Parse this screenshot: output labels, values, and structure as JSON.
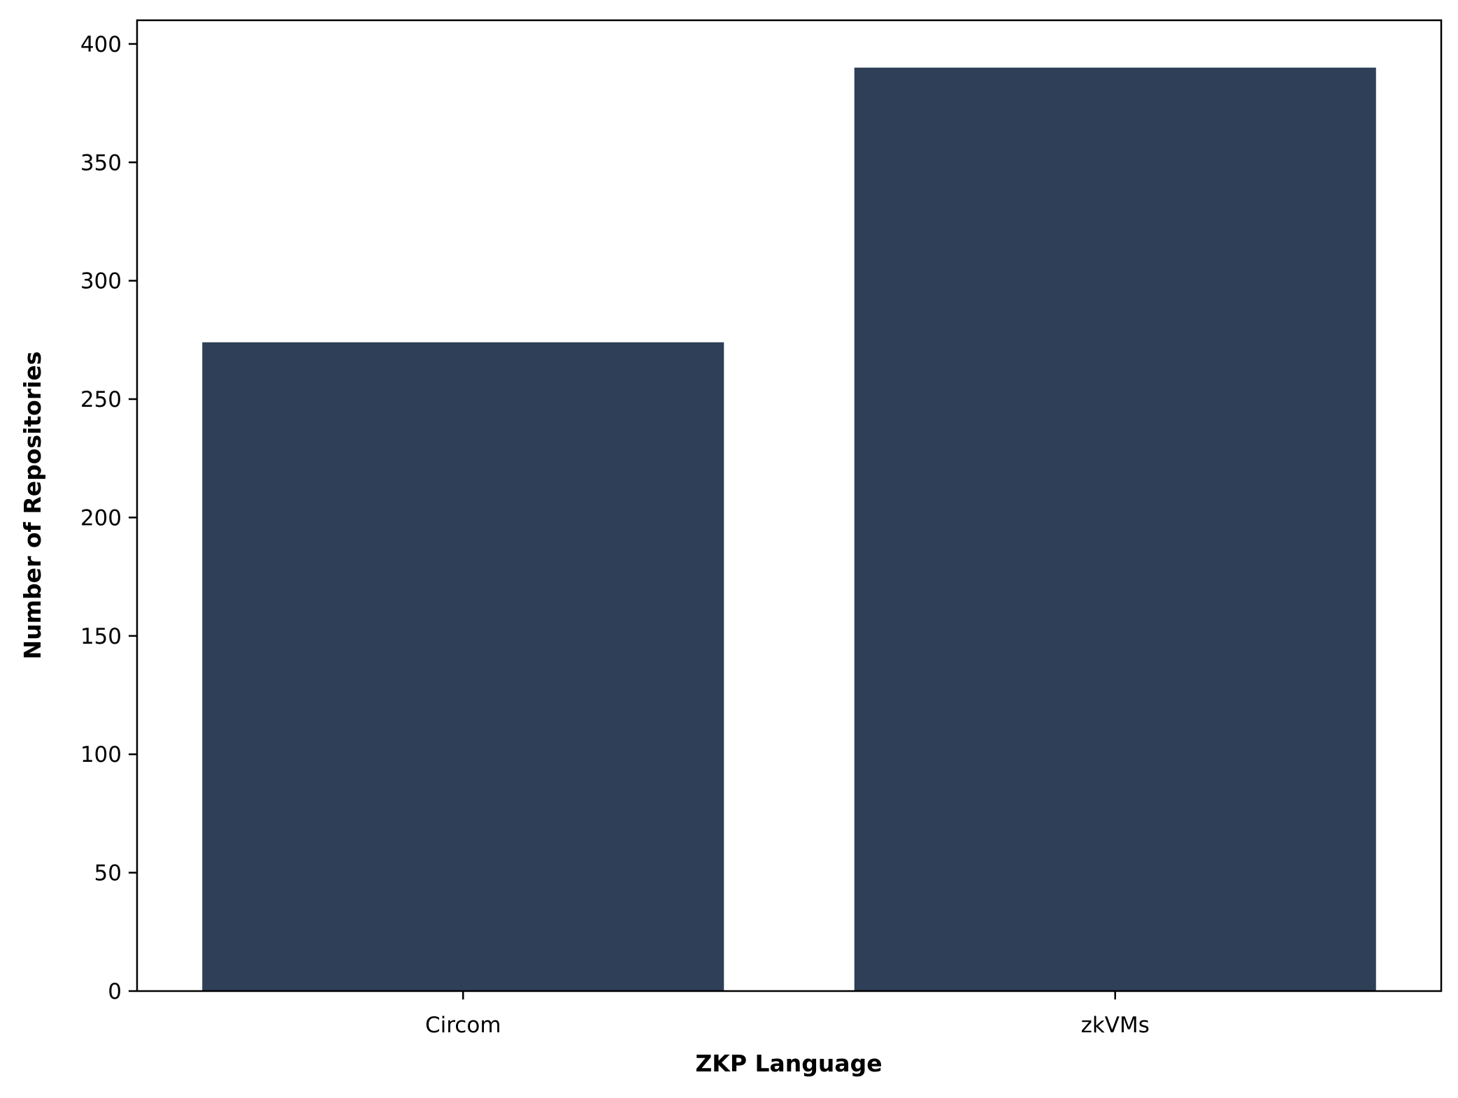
{
  "chart_data": {
    "type": "bar",
    "title": "",
    "xlabel": "ZKP Language",
    "ylabel": "Number of Repositories",
    "categories": [
      "Circom",
      "zkVMs"
    ],
    "values": [
      274,
      390
    ],
    "ylim": [
      0,
      410
    ],
    "yticks": [
      0,
      50,
      100,
      150,
      200,
      250,
      300,
      350,
      400
    ],
    "grid": false,
    "legend": "none",
    "bar_color": "#2e3f57"
  }
}
